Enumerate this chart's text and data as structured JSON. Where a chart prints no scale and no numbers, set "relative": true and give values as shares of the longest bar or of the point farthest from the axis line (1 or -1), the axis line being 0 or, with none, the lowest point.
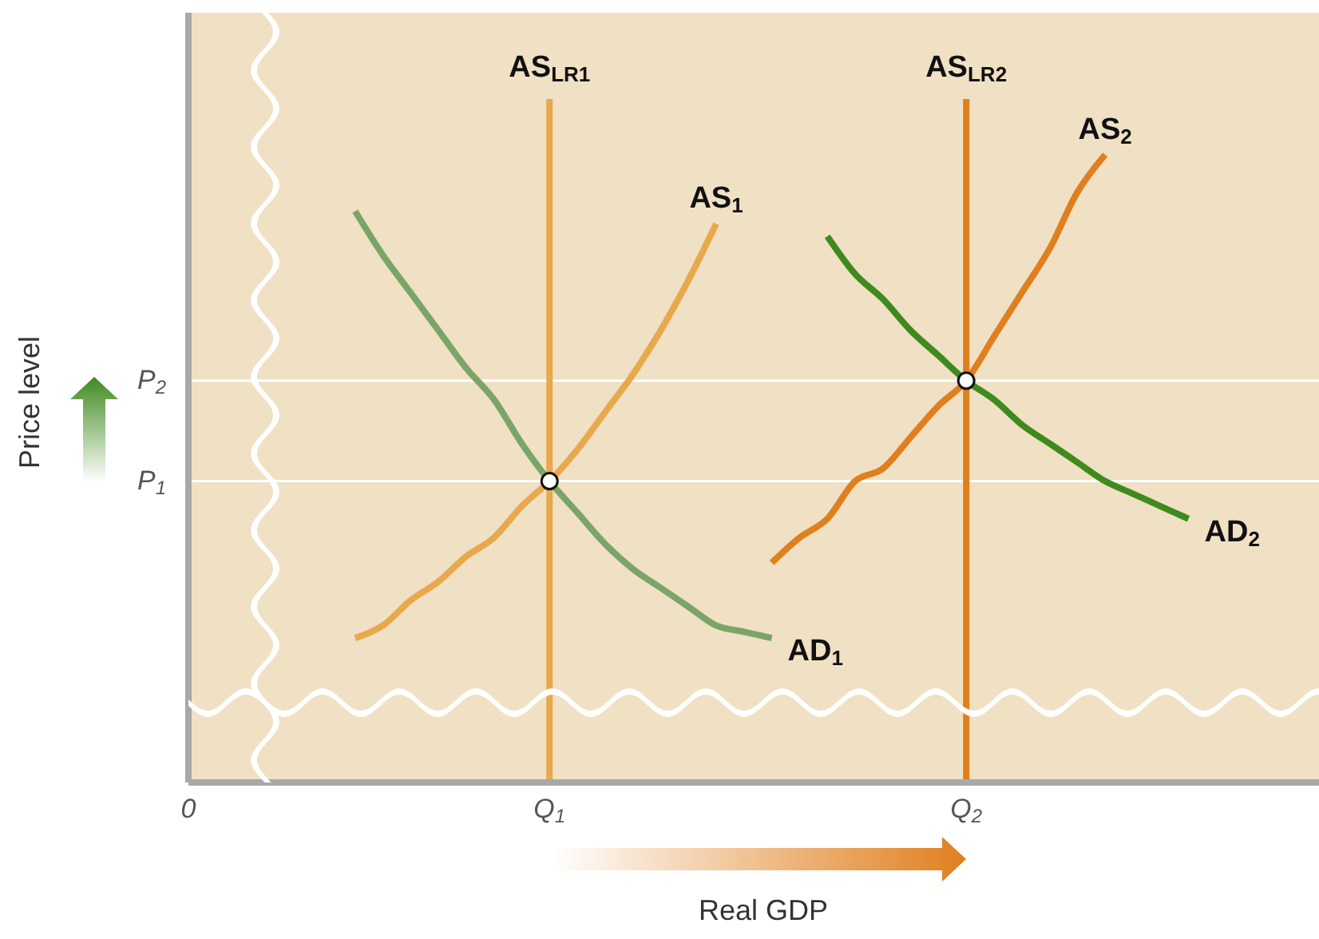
{
  "chart_data": {
    "type": "line",
    "xlabel": "Real GDP",
    "ylabel": "Price level",
    "relative": true,
    "legend": false,
    "marker": "none",
    "line_style": "solid",
    "categories": [
      "0",
      null,
      null,
      null,
      null,
      null,
      null,
      null,
      null,
      null,
      null,
      null,
      null,
      "Q$_{1}$",
      null,
      null,
      null,
      null,
      null,
      null,
      null,
      null,
      null,
      null,
      null,
      null,
      null,
      null,
      "Q$_{2}$",
      null,
      null,
      null,
      null,
      null,
      null,
      null,
      null,
      null,
      null,
      null,
      null
    ],
    "ref_lines": [
      {
        "axis": "y",
        "value": 0.48,
        "label": "P$_{1}$",
        "color": "#ffffff"
      },
      {
        "axis": "y",
        "value": 0.64,
        "label": "P$_{2}$",
        "color": "#ffffff"
      },
      {
        "axis": "x",
        "value": "Q$_{1}$",
        "label": "AS$_{LR1}$",
        "color": "#e8a84c"
      },
      {
        "axis": "x",
        "value": "Q$_{2}$",
        "label": "AS$_{LR2}$",
        "color": "#e07f1e"
      }
    ],
    "series": [
      {
        "name": "AD$_{1}$",
        "color": "#7aa566",
        "values": [
          null,
          null,
          null,
          null,
          null,
          null,
          0.91,
          0.84,
          0.78,
          0.72,
          0.66,
          0.61,
          0.54,
          0.48,
          0.43,
          0.38,
          0.34,
          0.31,
          0.28,
          0.25,
          0.24,
          0.23,
          null,
          null,
          null,
          null,
          null,
          null,
          null,
          null,
          null,
          null,
          null,
          null,
          null,
          null,
          null,
          null,
          null,
          null,
          null
        ]
      },
      {
        "name": "AS$_{1}$",
        "color": "#e8a84c",
        "values": [
          null,
          null,
          null,
          null,
          null,
          null,
          0.23,
          0.25,
          0.29,
          0.32,
          0.36,
          0.39,
          0.44,
          0.48,
          0.53,
          0.59,
          0.65,
          0.72,
          0.8,
          0.89,
          null,
          null,
          null,
          null,
          null,
          null,
          null,
          null,
          null,
          null,
          null,
          null,
          null,
          null,
          null,
          null,
          null,
          null,
          null,
          null,
          null
        ]
      },
      {
        "name": "AD$_{2}$",
        "color": "#3f8a1e",
        "values": [
          null,
          null,
          null,
          null,
          null,
          null,
          null,
          null,
          null,
          null,
          null,
          null,
          null,
          null,
          null,
          null,
          null,
          null,
          null,
          null,
          null,
          null,
          null,
          0.87,
          0.81,
          0.77,
          0.72,
          0.68,
          0.64,
          0.61,
          0.57,
          0.54,
          0.51,
          0.48,
          0.46,
          0.44,
          0.42,
          null,
          null,
          null,
          null
        ]
      },
      {
        "name": "AS$_{2}$",
        "color": "#e07f1e",
        "values": [
          null,
          null,
          null,
          null,
          null,
          null,
          null,
          null,
          null,
          null,
          null,
          null,
          null,
          null,
          null,
          null,
          null,
          null,
          null,
          null,
          null,
          0.35,
          0.39,
          0.42,
          0.48,
          0.5,
          0.55,
          0.6,
          0.64,
          0.71,
          0.78,
          0.85,
          0.94,
          1,
          null,
          null,
          null,
          null,
          null,
          null,
          null
        ]
      },
      {
        "type": "scatter",
        "color": "#ffffff",
        "marker": "circle",
        "x": [
          "Q$_{1}$",
          "Q$_{2}$"
        ],
        "values": [
          0.48,
          0.64
        ]
      }
    ]
  }
}
